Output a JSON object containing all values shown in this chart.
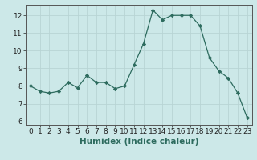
{
  "x": [
    0,
    1,
    2,
    3,
    4,
    5,
    6,
    7,
    8,
    9,
    10,
    11,
    12,
    13,
    14,
    15,
    16,
    17,
    18,
    19,
    20,
    21,
    22,
    23
  ],
  "y": [
    8.0,
    7.7,
    7.6,
    7.7,
    8.2,
    7.9,
    8.6,
    8.2,
    8.2,
    7.85,
    8.0,
    9.2,
    10.4,
    12.3,
    11.75,
    12.0,
    12.0,
    12.0,
    11.4,
    9.6,
    8.85,
    8.45,
    7.6,
    6.2
  ],
  "xlim": [
    -0.5,
    23.5
  ],
  "ylim": [
    5.8,
    12.6
  ],
  "yticks": [
    6,
    7,
    8,
    9,
    10,
    11,
    12
  ],
  "xticks": [
    0,
    1,
    2,
    3,
    4,
    5,
    6,
    7,
    8,
    9,
    10,
    11,
    12,
    13,
    14,
    15,
    16,
    17,
    18,
    19,
    20,
    21,
    22,
    23
  ],
  "xlabel": "Humidex (Indice chaleur)",
  "line_color": "#2d6b5e",
  "marker": "D",
  "marker_size": 2.2,
  "bg_color": "#cce8e8",
  "grid_color": "#b8d4d4",
  "tick_label_fontsize": 6.5,
  "xlabel_fontsize": 7.5,
  "spine_color": "#555555",
  "title": ""
}
